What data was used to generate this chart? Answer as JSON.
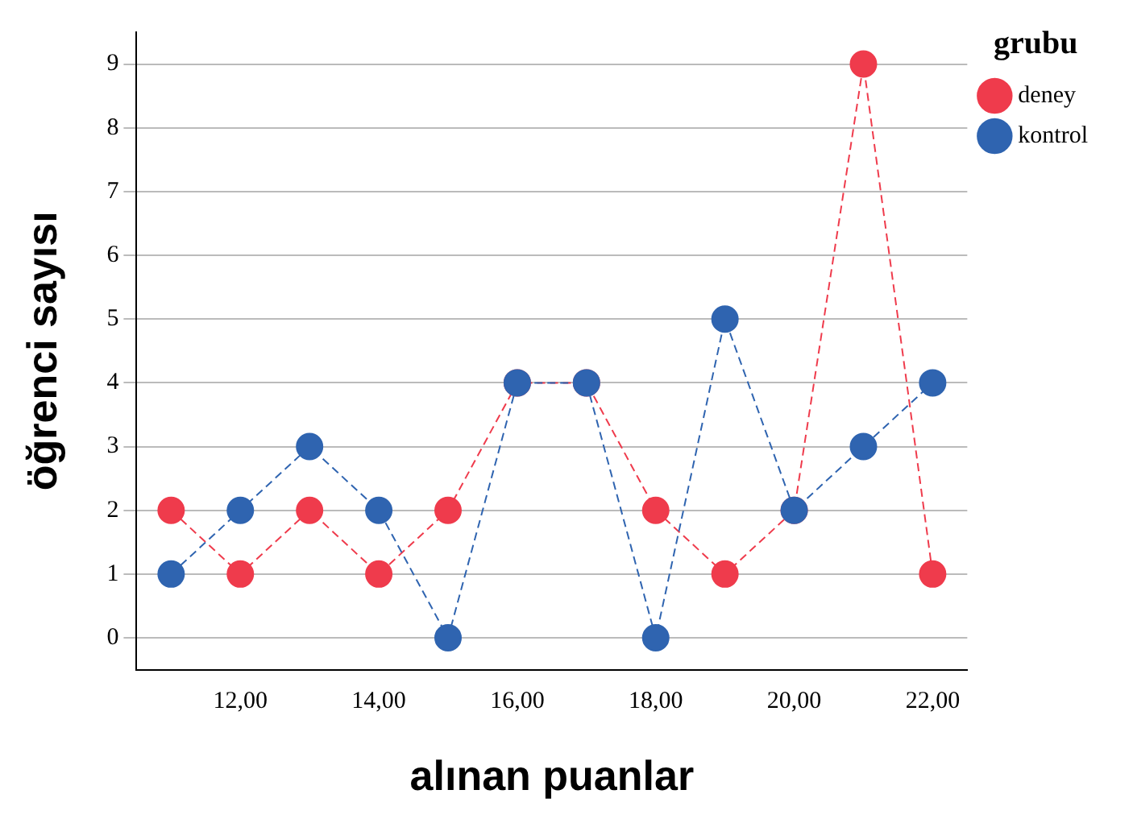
{
  "chart_data": {
    "type": "line",
    "xlabel": "alınan puanlar",
    "ylabel": "öğrenci sayısı",
    "legend_title": "grubu",
    "x": [
      11,
      12,
      13,
      14,
      15,
      16,
      17,
      18,
      19,
      20,
      21,
      22
    ],
    "series": [
      {
        "name": "deney",
        "color": "#ef3b4c",
        "values": [
          2,
          1,
          2,
          1,
          2,
          4,
          4,
          2,
          1,
          2,
          9,
          1
        ]
      },
      {
        "name": "kontrol",
        "color": "#2f64b0",
        "values": [
          1,
          2,
          3,
          2,
          0,
          4,
          4,
          0,
          5,
          2,
          3,
          4
        ]
      }
    ],
    "xlim": [
      10.5,
      22.5
    ],
    "ylim": [
      -0.5,
      9.5
    ],
    "xticks": [
      {
        "value": 12,
        "label": "12,00"
      },
      {
        "value": 14,
        "label": "14,00"
      },
      {
        "value": 16,
        "label": "16,00"
      },
      {
        "value": 18,
        "label": "18,00"
      },
      {
        "value": 20,
        "label": "20,00"
      },
      {
        "value": 22,
        "label": "22,00"
      }
    ],
    "yticks": [
      0,
      1,
      2,
      3,
      4,
      5,
      6,
      7,
      8,
      9
    ],
    "grid": "y",
    "legend": "top right",
    "marker": "circle",
    "line_style": "dashed"
  }
}
